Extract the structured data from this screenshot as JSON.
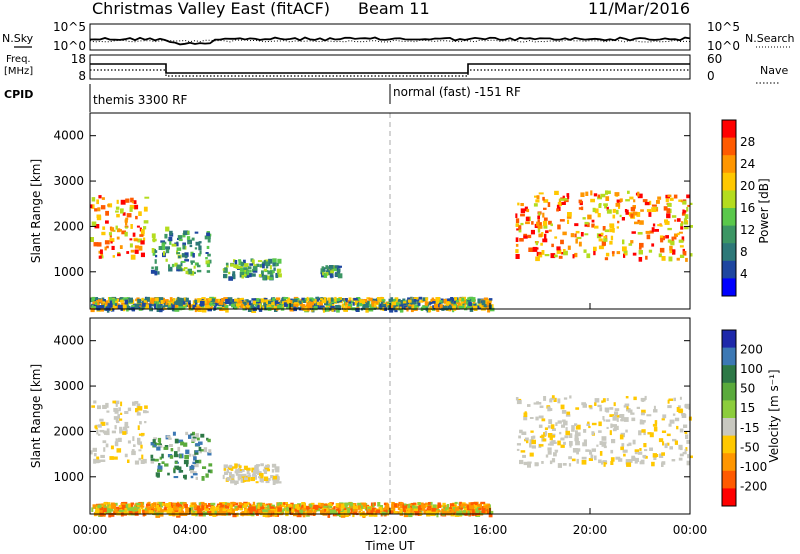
{
  "header": {
    "title": "Christmas Valley East (fitACF)",
    "beam": "Beam 11",
    "date": "11/Mar/2016"
  },
  "nsky_panel": {
    "left_label": "N.Sky",
    "right_label": "N.Search",
    "left_ticks": [
      "10^5",
      "10^0"
    ],
    "right_ticks": [
      "10^5",
      "10^0"
    ]
  },
  "freq_panel": {
    "label_lines": [
      "Freq.",
      "[MHz]"
    ],
    "right_label": "Nave",
    "left_ticks": [
      "18",
      "8"
    ],
    "right_ticks": [
      "60",
      "0"
    ]
  },
  "cpid_panel": {
    "label": "CPID",
    "modes": [
      {
        "label": "themis 3300 RF"
      },
      {
        "label": "normal (fast) -151 RF"
      }
    ]
  },
  "x_axis": {
    "label": "Time UT",
    "ticks": [
      "00:00",
      "04:00",
      "08:00",
      "12:00",
      "16:00",
      "20:00",
      "00:00"
    ]
  },
  "power_colorbar": {
    "label": "Power [dB]",
    "ticks": [
      "28",
      "24",
      "20",
      "16",
      "12",
      "8",
      "4"
    ],
    "colors": [
      "#ff0000",
      "#ff5a00",
      "#ff9600",
      "#ffc800",
      "#b4dc1e",
      "#5ac84b",
      "#3c9664",
      "#2d7878",
      "#1e46a0",
      "#0000ff"
    ]
  },
  "velocity_colorbar": {
    "label": "Velocity [m s⁻¹]",
    "ticks": [
      "200",
      "100",
      "50",
      "15",
      "-15",
      "-50",
      "-100",
      "-200"
    ],
    "colors": [
      "#1e28aa",
      "#3c78b4",
      "#2d7846",
      "#5aaa3c",
      "#8ccd3c",
      "#c8c8c0",
      "#ffc800",
      "#ff9600",
      "#ff5a00",
      "#ff0000"
    ]
  },
  "chart_data": [
    {
      "type": "heatmap",
      "name": "power",
      "ylabel": "Slant Range [km]",
      "xlabel": "Time UT",
      "xlim_hours": [
        0,
        24
      ],
      "ylim": [
        180,
        4500
      ],
      "yticks": [
        "1000",
        "2000",
        "3000",
        "4000"
      ],
      "ytick_values": [
        1000,
        2000,
        3000,
        4000
      ],
      "regions": [
        {
          "t0": 0.0,
          "t1": 2.2,
          "r0": 1350,
          "r1": 2700,
          "level": "high"
        },
        {
          "t0": 2.4,
          "t1": 4.8,
          "r0": 1000,
          "r1": 2000,
          "level": "mid"
        },
        {
          "t0": 5.3,
          "t1": 7.5,
          "r0": 900,
          "r1": 1300,
          "level": "mid"
        },
        {
          "t0": 9.2,
          "t1": 10.0,
          "r0": 950,
          "r1": 1150,
          "level": "mid"
        },
        {
          "t0": 17.0,
          "t1": 24.0,
          "r0": 1300,
          "r1": 2800,
          "level": "high"
        },
        {
          "t0": 0.0,
          "t1": 16.0,
          "r0": 200,
          "r1": 450,
          "level": "low"
        }
      ]
    },
    {
      "type": "heatmap",
      "name": "velocity",
      "ylabel": "Slant Range [km]",
      "xlabel": "Time UT",
      "xlim_hours": [
        0,
        24
      ],
      "ylim": [
        180,
        4500
      ],
      "yticks": [
        "1000",
        "2000",
        "3000",
        "4000"
      ],
      "ytick_values": [
        1000,
        2000,
        3000,
        4000
      ],
      "regions": [
        {
          "t0": 0.0,
          "t1": 2.2,
          "r0": 1350,
          "r1": 2700,
          "level": "ground"
        },
        {
          "t0": 2.4,
          "t1": 4.8,
          "r0": 1000,
          "r1": 2000,
          "level": "toward"
        },
        {
          "t0": 5.3,
          "t1": 7.5,
          "r0": 900,
          "r1": 1300,
          "level": "ground"
        },
        {
          "t0": 17.0,
          "t1": 24.0,
          "r0": 1300,
          "r1": 2800,
          "level": "ground"
        },
        {
          "t0": 0.0,
          "t1": 16.0,
          "r0": 200,
          "r1": 450,
          "level": "away"
        }
      ]
    }
  ]
}
